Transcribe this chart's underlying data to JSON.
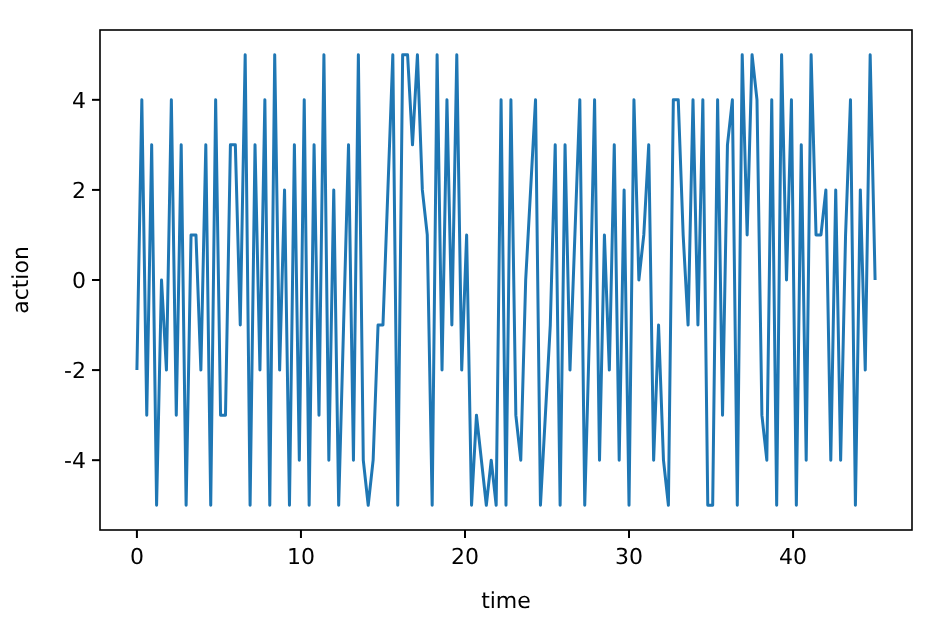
{
  "chart_data": {
    "type": "line",
    "xlabel": "time",
    "ylabel": "action",
    "x": [
      0,
      0.3,
      0.6,
      0.9,
      1.2,
      1.5,
      1.8,
      2.1,
      2.4,
      2.7,
      3,
      3.3,
      3.6,
      3.9,
      4.2,
      4.5,
      4.8,
      5.1,
      5.4,
      5.7,
      6,
      6.3,
      6.6,
      6.9,
      7.2,
      7.5,
      7.8,
      8.1,
      8.4,
      8.7,
      9,
      9.3,
      9.6,
      9.9,
      10.2,
      10.5,
      10.8,
      11.1,
      11.4,
      11.7,
      12,
      12.3,
      12.6,
      12.9,
      13.2,
      13.5,
      13.8,
      14.1,
      14.4,
      14.7,
      15,
      15.3,
      15.6,
      15.9,
      16.2,
      16.5,
      16.8,
      17.1,
      17.4,
      17.7,
      18,
      18.3,
      18.6,
      18.9,
      19.2,
      19.5,
      19.8,
      20.1,
      20.4,
      20.7,
      21,
      21.3,
      21.6,
      21.9,
      22.2,
      22.5,
      22.8,
      23.1,
      23.4,
      23.7,
      24,
      24.3,
      24.6,
      24.9,
      25.2,
      25.5,
      25.8,
      26.1,
      26.4,
      26.7,
      27,
      27.3,
      27.6,
      27.9,
      28.2,
      28.5,
      28.8,
      29.1,
      29.4,
      29.7,
      30,
      30.3,
      30.6,
      30.9,
      31.2,
      31.5,
      31.8,
      32.1,
      32.4,
      32.7,
      33,
      33.3,
      33.6,
      33.9,
      34.2,
      34.5,
      34.8,
      35.1,
      35.4,
      35.7,
      36,
      36.3,
      36.6,
      36.9,
      37.2,
      37.5,
      37.8,
      38.1,
      38.4,
      38.7,
      39,
      39.3,
      39.6,
      39.9,
      40.2,
      40.5,
      40.8,
      41.1,
      41.4,
      41.7,
      42,
      42.3,
      42.6,
      42.9,
      43.2,
      43.5,
      43.8,
      44.1,
      44.4,
      44.7,
      45
    ],
    "series": [
      {
        "color": "#1f77b4",
        "values": [
          -2,
          4,
          -3,
          3,
          -5,
          0,
          -2,
          4,
          -3,
          3,
          -5,
          1,
          1,
          -2,
          3,
          -5,
          4,
          -3,
          -3,
          3,
          3,
          -1,
          5,
          -5,
          3,
          -2,
          4,
          -5,
          5,
          -2,
          2,
          -5,
          3,
          -4,
          4,
          -5,
          3,
          -3,
          5,
          -4,
          2,
          -5,
          -1,
          3,
          -4,
          5,
          -4,
          -5,
          -4,
          -1,
          -1,
          2,
          5,
          -5,
          5,
          5,
          3,
          5,
          2,
          1,
          -5,
          5,
          -2,
          4,
          -1,
          5,
          -2,
          1,
          -5,
          -3,
          -4,
          -5,
          -4,
          -5,
          4,
          -5,
          4,
          -3,
          -4,
          0,
          2,
          4,
          -5,
          -3,
          -1,
          3,
          -5,
          3,
          -2,
          1,
          4,
          -5,
          -1,
          4,
          -4,
          1,
          -2,
          3,
          -4,
          2,
          -5,
          4,
          0,
          1,
          3,
          -4,
          -1,
          -4,
          -5,
          4,
          4,
          1,
          -1,
          4,
          -1,
          4,
          -5,
          -5,
          4,
          -3,
          3,
          4,
          -5,
          5,
          1,
          5,
          4,
          -3,
          -4,
          4,
          -5,
          5,
          0,
          4,
          -5,
          3,
          -4,
          5,
          1,
          1,
          2,
          -4,
          2,
          -4,
          1,
          4,
          -5,
          2,
          -2,
          5,
          0
        ]
      }
    ],
    "xlim": [
      -2.25,
      47.25
    ],
    "xticks": [
      0,
      10,
      20,
      30,
      40
    ],
    "ylim": [
      -5.55,
      5.55
    ],
    "yticks": [
      -4,
      -2,
      0,
      2,
      4
    ]
  }
}
